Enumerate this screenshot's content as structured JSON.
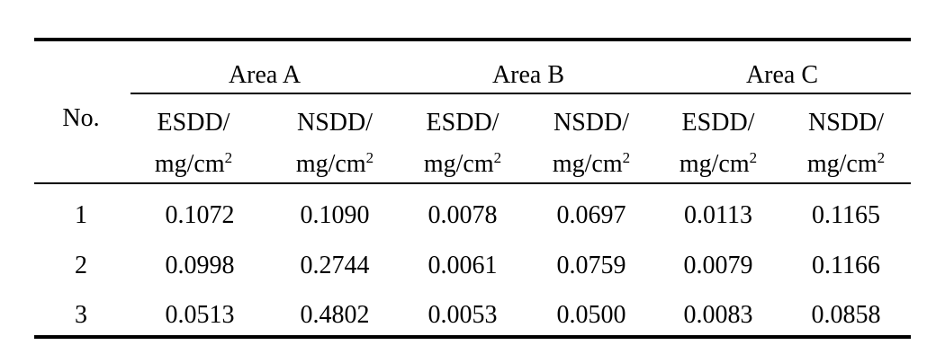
{
  "table": {
    "row_header": "No.",
    "groups": [
      "Area A",
      "Area B",
      "Area C"
    ],
    "columns": [
      {
        "name": "ESDD/",
        "unit": "mg/cm",
        "exp": "2"
      },
      {
        "name": "NSDD/",
        "unit": "mg/cm",
        "exp": "2"
      },
      {
        "name": "ESDD/",
        "unit": "mg/cm",
        "exp": "2"
      },
      {
        "name": "NSDD/",
        "unit": "mg/cm",
        "exp": "2"
      },
      {
        "name": "ESDD/",
        "unit": "mg/cm",
        "exp": "2"
      },
      {
        "name": "NSDD/",
        "unit": "mg/cm",
        "exp": "2"
      }
    ],
    "rows": [
      {
        "no": "1",
        "values": [
          "0.1072",
          "0.1090",
          "0.0078",
          "0.0697",
          "0.0113",
          "0.1165"
        ]
      },
      {
        "no": "2",
        "values": [
          "0.0998",
          "0.2744",
          "0.0061",
          "0.0759",
          "0.0079",
          "0.1166"
        ]
      },
      {
        "no": "3",
        "values": [
          "0.0513",
          "0.4802",
          "0.0053",
          "0.0500",
          "0.0083",
          "0.0858"
        ]
      }
    ]
  }
}
